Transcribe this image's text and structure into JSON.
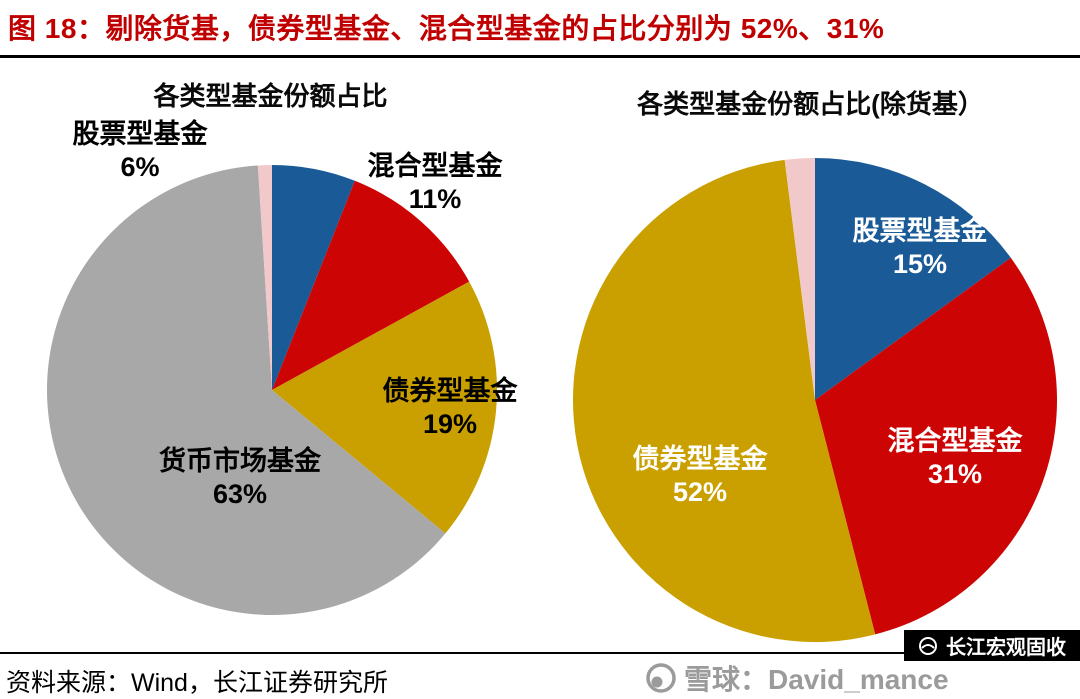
{
  "header": {
    "figure_title": "图 18：剔除货基，债券型基金、混合型基金的占比分别为 52%、31%",
    "title_color": "#c00000"
  },
  "source_note": "资料来源：Wind，长江证券研究所",
  "watermark": {
    "brand": "长江宏观固收",
    "account": "雪球：David_mance"
  },
  "chart_data": [
    {
      "type": "pie",
      "title": "各类型基金份额占比",
      "legend_position": "none",
      "slices": [
        {
          "label": "股票型基金",
          "value": 6,
          "pct": "6%",
          "color": "#1a5a96"
        },
        {
          "label": "混合型基金",
          "value": 11,
          "pct": "11%",
          "color": "#cc0404"
        },
        {
          "label": "债券型基金",
          "value": 19,
          "pct": "19%",
          "color": "#c9a000"
        },
        {
          "label": "货币市场基金",
          "value": 63,
          "pct": "63%",
          "color": "#a8a8a8"
        },
        {
          "label": "",
          "value": 1,
          "pct": "",
          "color": "#f2c9cb"
        }
      ]
    },
    {
      "type": "pie",
      "title": "各类型基金份额占比(除货基）",
      "legend_position": "none",
      "slices": [
        {
          "label": "股票型基金",
          "value": 15,
          "pct": "15%",
          "color": "#1a5a96"
        },
        {
          "label": "混合型基金",
          "value": 31,
          "pct": "31%",
          "color": "#cc0404"
        },
        {
          "label": "债券型基金",
          "value": 52,
          "pct": "52%",
          "color": "#c9a000"
        },
        {
          "label": "",
          "value": 2,
          "pct": "",
          "color": "#f2c9cb"
        }
      ]
    }
  ]
}
